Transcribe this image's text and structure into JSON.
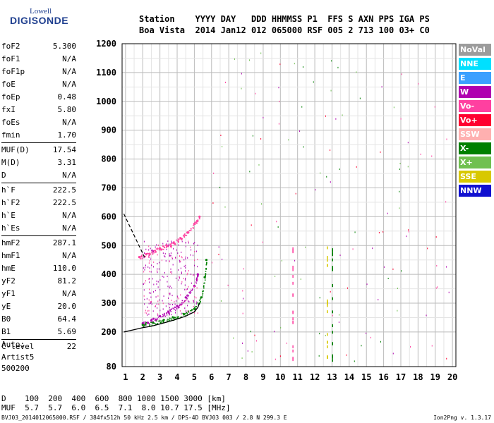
{
  "logo": {
    "line1": "Lowell",
    "line2": "DIGISONDE"
  },
  "header": {
    "line1": "Station    YYYY DAY   DDD HHMMSS P1  FFS S AXN PPS IGA PS",
    "line2": "Boa Vista  2014 Jan12 012 065000 RSF 005 2 713 100 03+ C0"
  },
  "params": [
    {
      "label": "foF2",
      "value": "5.300"
    },
    {
      "label": "foF1",
      "value": "N/A"
    },
    {
      "label": "foF1p",
      "value": "N/A"
    },
    {
      "label": "foE",
      "value": "N/A"
    },
    {
      "label": "foEp",
      "value": "0.48"
    },
    {
      "label": "fxI",
      "value": "5.80"
    },
    {
      "label": "foEs",
      "value": "N/A"
    },
    {
      "label": "fmin",
      "value": "1.70"
    },
    {
      "label": "MUF(D)",
      "value": "17.54",
      "sep": true
    },
    {
      "label": "M(D)",
      "value": "3.31"
    },
    {
      "label": "D",
      "value": "N/A"
    },
    {
      "label": "h`F",
      "value": "222.5",
      "sep": true
    },
    {
      "label": "h`F2",
      "value": "222.5"
    },
    {
      "label": "h`E",
      "value": "N/A"
    },
    {
      "label": "h`Es",
      "value": "N/A"
    },
    {
      "label": "hmF2",
      "value": "287.1",
      "sep": true
    },
    {
      "label": "hmF1",
      "value": "N/A"
    },
    {
      "label": "hmE",
      "value": "110.0"
    },
    {
      "label": "yF2",
      "value": "81.2"
    },
    {
      "label": "yF1",
      "value": "N/A"
    },
    {
      "label": "yE",
      "value": "20.0"
    },
    {
      "label": "B0",
      "value": "64.4"
    },
    {
      "label": "B1",
      "value": "5.69"
    },
    {
      "label": "C-level",
      "value": "22",
      "sep": true
    }
  ],
  "auto": {
    "line1": "Auto:",
    "line2": "Artist5",
    "line3": "500200"
  },
  "legend": [
    {
      "label": "NoVal",
      "color": "#9c9c9c"
    },
    {
      "label": "NNE",
      "color": "#00e0ff"
    },
    {
      "label": "E",
      "color": "#3ba0ff"
    },
    {
      "label": "W",
      "color": "#b000b0"
    },
    {
      "label": "Vo-",
      "color": "#ff40a0"
    },
    {
      "label": "Vo+",
      "color": "#ff0030"
    },
    {
      "label": "SSW",
      "color": "#ffb0b0"
    },
    {
      "label": "X-",
      "color": "#008000"
    },
    {
      "label": "X+",
      "color": "#70c050"
    },
    {
      "label": "SSE",
      "color": "#d8c800"
    },
    {
      "label": "NNW",
      "color": "#1010d0"
    }
  ],
  "footer": {
    "d_line": "D    100  200  400  600  800 1000 1500 3000 [km]",
    "muf_line": "MUF  5.7  5.7  6.0  6.5  7.1  8.0 10.7 17.5 [MHz]",
    "file": "BVJ03_2014012065000.RSF / 384fx512h 50 kHz 2.5 km / DPS-4D BVJ03 003 / 2.8 N 299.3 E",
    "version": "Ion2Png v. 1.3.17"
  },
  "chart_data": {
    "type": "scatter",
    "xlim": [
      0.8,
      20.2
    ],
    "ylim": [
      80,
      1200
    ],
    "x_ticks": [
      1,
      2,
      3,
      4,
      5,
      6,
      7,
      8,
      9,
      10,
      11,
      12,
      13,
      14,
      15,
      16,
      17,
      18,
      19,
      20
    ],
    "y_ticks": [
      80,
      200,
      300,
      400,
      500,
      600,
      700,
      800,
      900,
      1000,
      1100,
      1200
    ],
    "grid": true,
    "legend_position": "right",
    "series": [
      {
        "name": "W",
        "color": "#b000b0",
        "x": [
          2.0,
          2.5,
          3.0,
          3.5,
          4.0,
          4.5,
          5.0,
          5.2
        ],
        "y": [
          230,
          240,
          255,
          270,
          290,
          320,
          360,
          400
        ]
      },
      {
        "name": "Vo-",
        "color": "#ff40a0",
        "x": [
          1.8,
          2.2,
          2.6,
          3.0,
          3.4,
          3.8,
          4.2,
          4.6,
          5.0,
          5.3
        ],
        "y": [
          460,
          470,
          480,
          490,
          500,
          510,
          525,
          545,
          575,
          600
        ]
      },
      {
        "name": "X-",
        "color": "#008000",
        "x": [
          2.0,
          2.6,
          3.2,
          3.8,
          4.4,
          5.0,
          5.4,
          5.6,
          5.7
        ],
        "y": [
          225,
          232,
          240,
          250,
          262,
          280,
          320,
          390,
          450
        ]
      }
    ],
    "profile_curve": {
      "x": [
        0.9,
        1.5,
        2.0,
        2.5,
        3.0,
        3.5,
        4.0,
        4.5,
        5.0,
        5.2,
        5.3
      ],
      "y": [
        200,
        208,
        215,
        220,
        228,
        236,
        245,
        255,
        270,
        285,
        300
      ]
    },
    "dashed_curve": {
      "x": [
        0.9,
        1.3,
        1.7,
        2.1
      ],
      "y": [
        610,
        560,
        510,
        460
      ]
    }
  }
}
